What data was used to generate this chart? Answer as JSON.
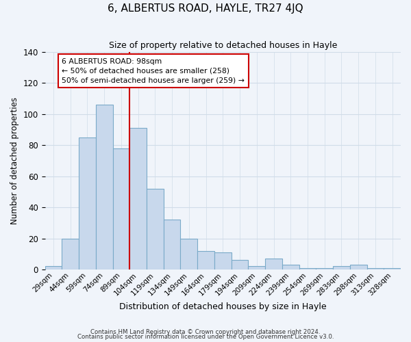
{
  "title": "6, ALBERTUS ROAD, HAYLE, TR27 4JQ",
  "subtitle": "Size of property relative to detached houses in Hayle",
  "xlabel": "Distribution of detached houses by size in Hayle",
  "ylabel": "Number of detached properties",
  "bar_labels": [
    "29sqm",
    "44sqm",
    "59sqm",
    "74sqm",
    "89sqm",
    "104sqm",
    "119sqm",
    "134sqm",
    "149sqm",
    "164sqm",
    "179sqm",
    "194sqm",
    "209sqm",
    "224sqm",
    "239sqm",
    "254sqm",
    "269sqm",
    "283sqm",
    "298sqm",
    "313sqm",
    "328sqm"
  ],
  "bar_values": [
    2,
    20,
    85,
    106,
    78,
    91,
    52,
    32,
    20,
    12,
    11,
    6,
    2,
    7,
    3,
    1,
    1,
    2,
    3,
    1,
    1
  ],
  "bar_color": "#c8d8ec",
  "bar_edge_color": "#7aaac8",
  "vline_x": 5,
  "vline_color": "#cc0000",
  "annotation_title": "6 ALBERTUS ROAD: 98sqm",
  "annotation_line1": "← 50% of detached houses are smaller (258)",
  "annotation_line2": "50% of semi-detached houses are larger (259) →",
  "annotation_box_color": "#ffffff",
  "annotation_box_edge": "#cc0000",
  "ylim": [
    0,
    140
  ],
  "footnote1": "Contains HM Land Registry data © Crown copyright and database right 2024.",
  "footnote2": "Contains public sector information licensed under the Open Government Licence v3.0.",
  "background_color": "#f0f4fa",
  "grid_color": "#d0dce8"
}
